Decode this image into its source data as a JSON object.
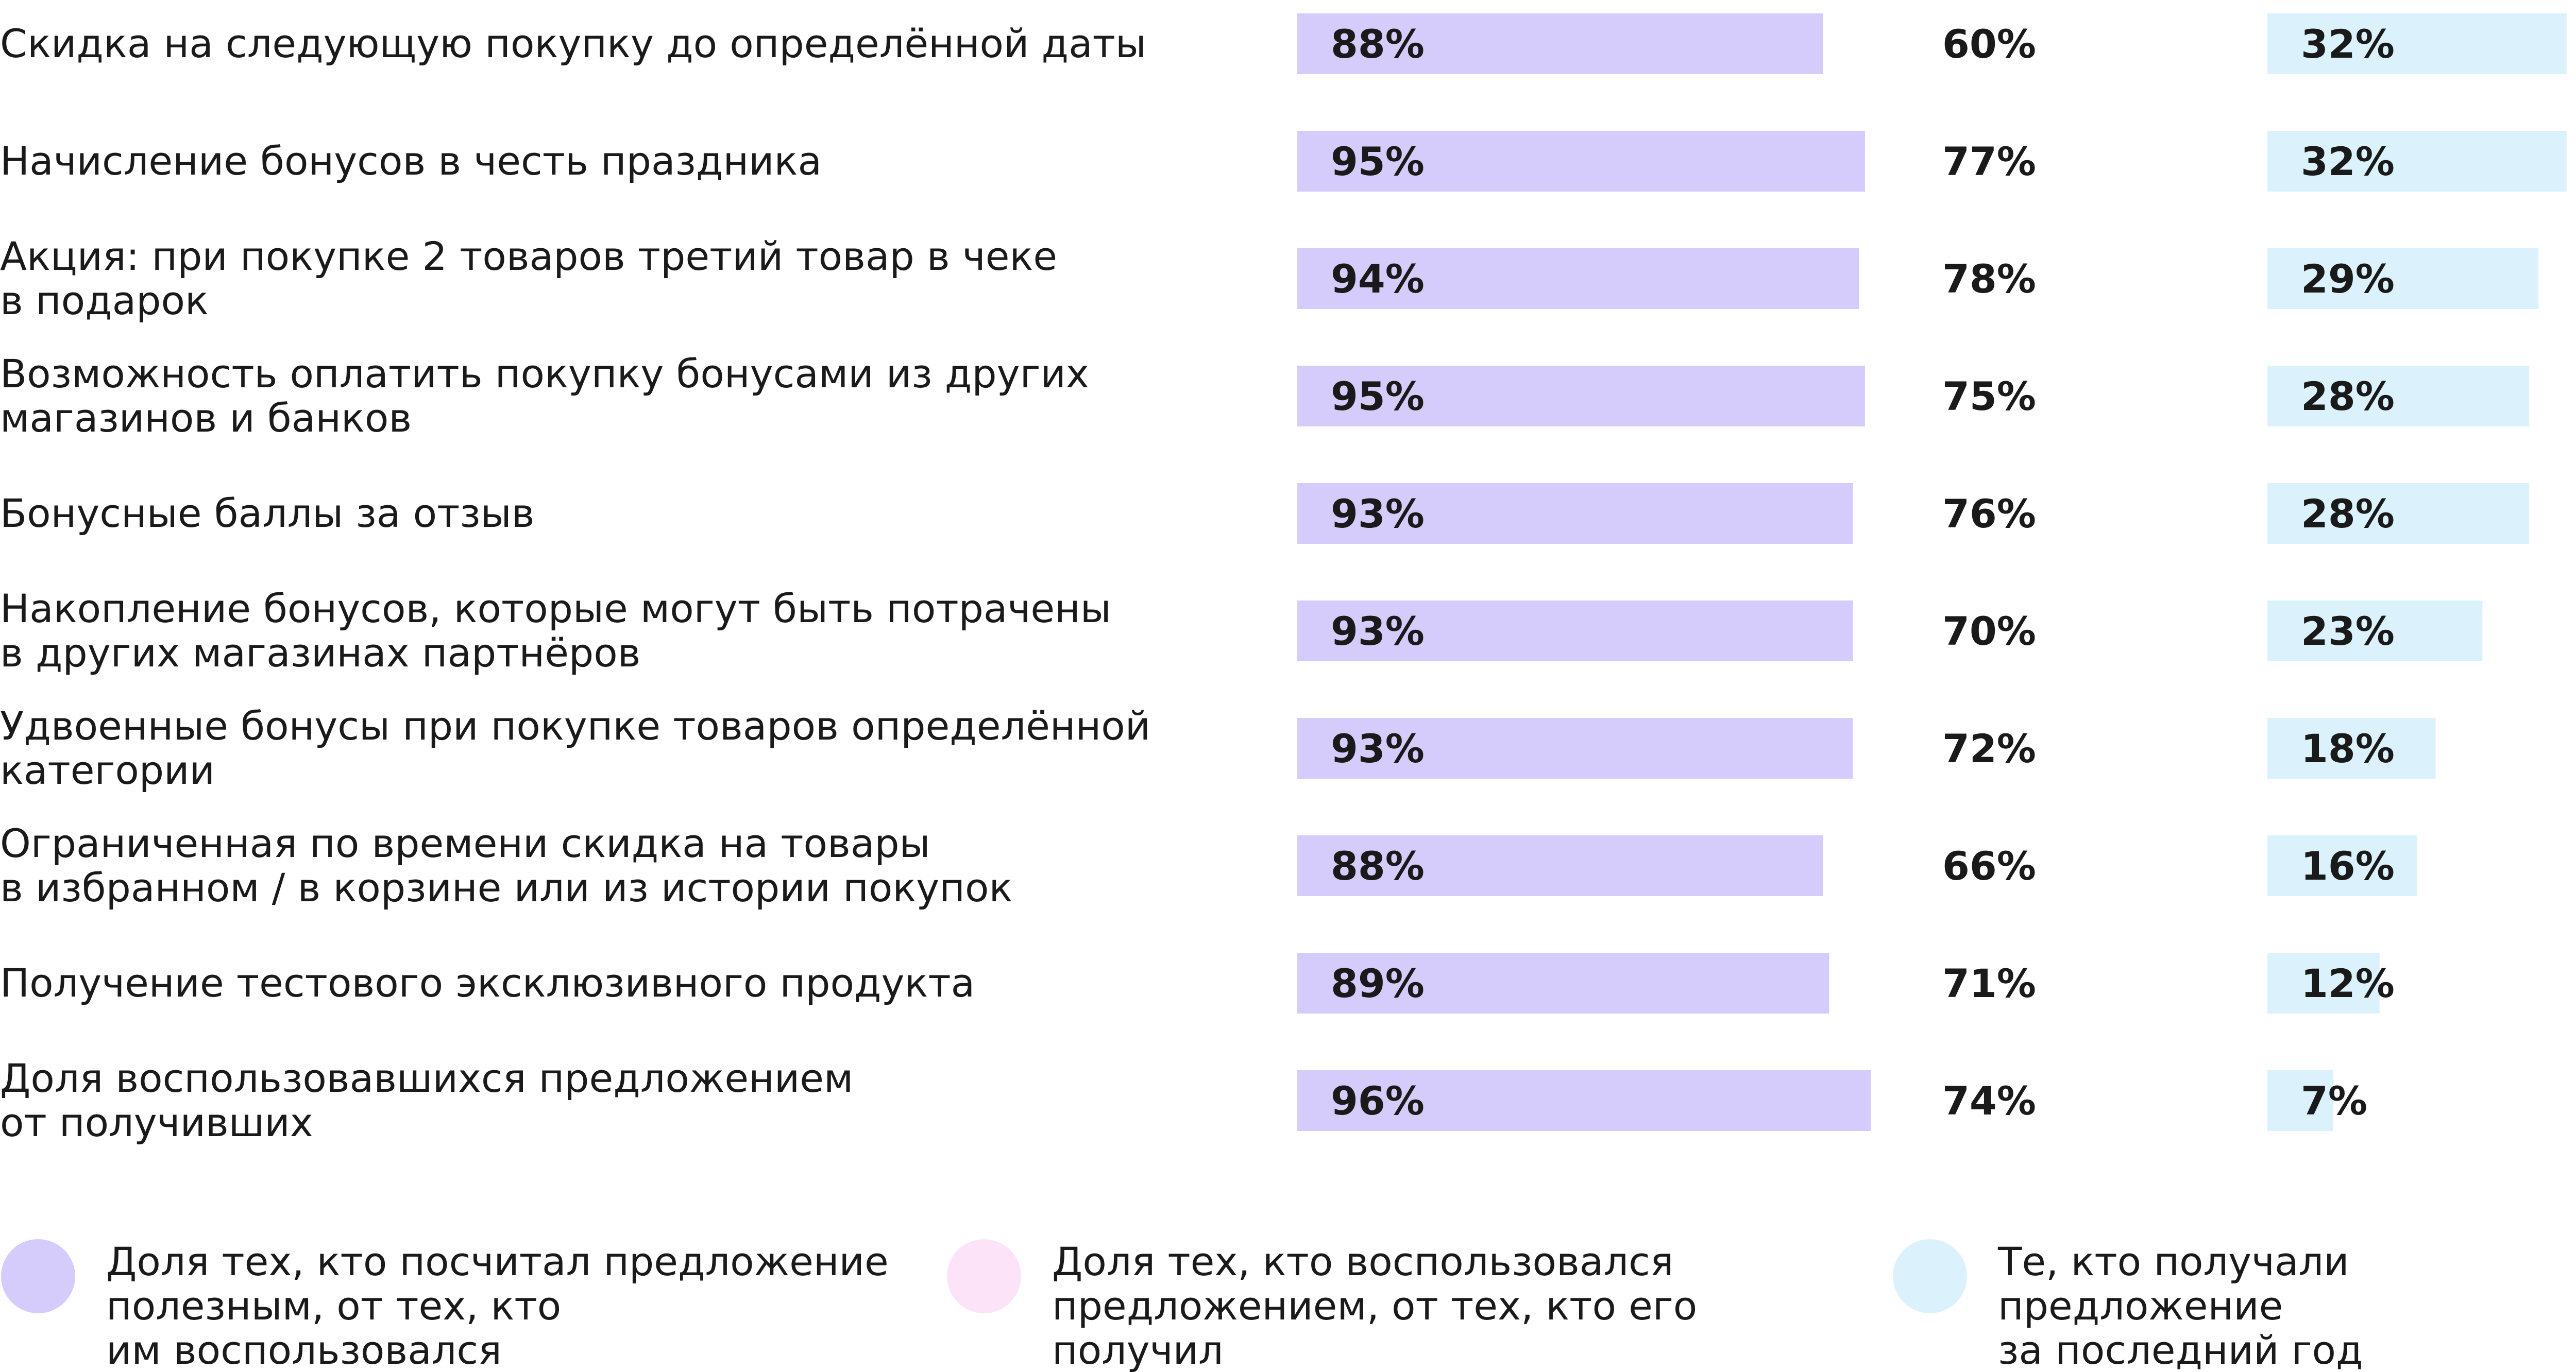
{
  "chart_data": {
    "type": "bar",
    "categories": [
      [
        "Скидка на следующую покупку до определённой даты"
      ],
      [
        "Начисление бонусов в честь праздника"
      ],
      [
        "Акция: при покупке 2 товаров третий товар в чеке",
        "в подарок"
      ],
      [
        "Возможность оплатить покупку бонусами из других",
        "магазинов и банков"
      ],
      [
        "Бонусные баллы за отзыв"
      ],
      [
        "Накопление бонусов, которые могут быть потрачены",
        "в других магазинах партнёров"
      ],
      [
        "Удвоенные бонусы при покупке товаров определённой",
        "категории"
      ],
      [
        "Ограниченная по времени скидка на товары",
        "в избранном / в корзине или из истории покупок"
      ],
      [
        "Получение тестового эксклюзивного продукта"
      ],
      [
        "Доля воспользовавшихся предложением",
        "от получивших"
      ]
    ],
    "series": [
      {
        "name": "Доля тех, кто посчитал предложение полезным, от тех, кто им воспользовался",
        "color": "#d5ccfc",
        "values": [
          88,
          95,
          94,
          95,
          93,
          93,
          93,
          88,
          89,
          96
        ],
        "labels": [
          "88%",
          "95%",
          "94%",
          "95%",
          "93%",
          "93%",
          "93%",
          "88%",
          "89%",
          "96%"
        ]
      },
      {
        "name": "Доля тех, кто воспользовался предложением, от тех, кто его получил",
        "color": "#fde3f8",
        "values": [
          60,
          77,
          78,
          75,
          76,
          70,
          72,
          66,
          71,
          74
        ],
        "labels": [
          "60%",
          "77%",
          "78%",
          "75%",
          "76%",
          "70%",
          "72%",
          "66%",
          "71%",
          "74%"
        ]
      },
      {
        "name": "Те, кто получали предложение за последний год",
        "color": "#dbf2fc",
        "values": [
          32,
          32,
          29,
          28,
          28,
          23,
          18,
          16,
          12,
          7
        ],
        "labels": [
          "32%",
          "32%",
          "29%",
          "28%",
          "28%",
          "23%",
          "18%",
          "16%",
          "12%",
          "7%"
        ]
      }
    ],
    "legend": {
      "position": "bottom",
      "items": [
        [
          "Доля тех, кто посчитал предложение",
          "полезным, от тех, кто",
          "им воспользовался"
        ],
        [
          "Доля тех, кто воспользовался",
          "предложением, от тех, кто его",
          "получил"
        ],
        [
          "Те, кто получали",
          "предложение",
          "за последний год"
        ]
      ]
    },
    "title": "",
    "xlabel": "",
    "ylabel": "",
    "grid": false
  }
}
